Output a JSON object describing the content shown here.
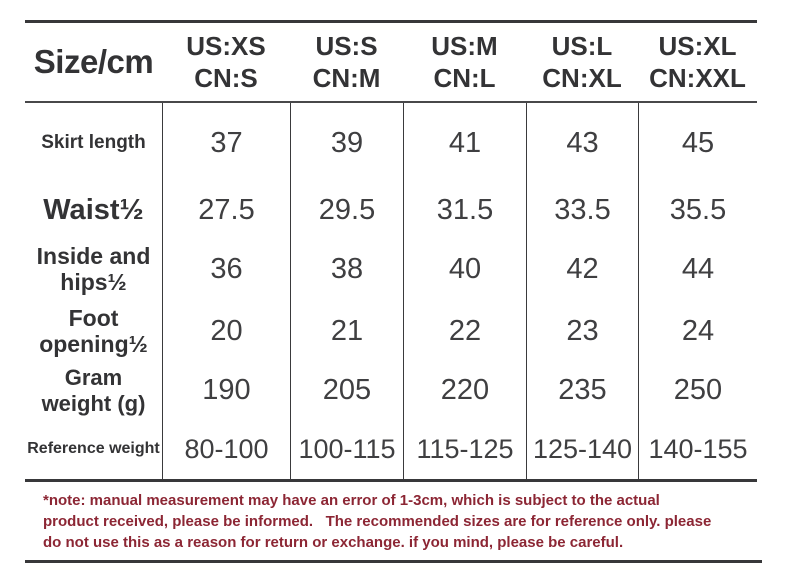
{
  "chart_data": {
    "type": "table",
    "title": "Size/cm",
    "corner_label": "Size/cm",
    "size_headers": [
      "US:XS\nCN:S",
      "US:S\nCN:M",
      "US:M\nCN:L",
      "US:L\nCN:XL",
      "US:XL\nCN:XXL"
    ],
    "rows": [
      {
        "label": "Skirt length",
        "values": [
          "37",
          "39",
          "41",
          "43",
          "45"
        ]
      },
      {
        "label": "Waist½",
        "values": [
          "27.5",
          "29.5",
          "31.5",
          "33.5",
          "35.5"
        ]
      },
      {
        "label": "Inside and\nhips½",
        "values": [
          "36",
          "38",
          "40",
          "42",
          "44"
        ]
      },
      {
        "label": "Foot\nopening½",
        "values": [
          "20",
          "21",
          "22",
          "23",
          "24"
        ]
      },
      {
        "label": "Gram\nweight (g)",
        "values": [
          "190",
          "205",
          "220",
          "235",
          "250"
        ]
      },
      {
        "label": "Reference weight",
        "values": [
          "80-100",
          "100-115",
          "115-125",
          "125-140",
          "140-155"
        ]
      }
    ]
  },
  "note": {
    "text": "*note: manual measurement may have an error of 1-3cm, which is subject to the actual\nproduct received, please be informed.   The recommended sizes are for reference only. please\ndo not use this as a reason for return or exchange. if you mind, please be careful."
  },
  "colors": {
    "text": "#333335",
    "values": "#3f3f41",
    "note": "#8c2634",
    "line": "#38383a"
  }
}
